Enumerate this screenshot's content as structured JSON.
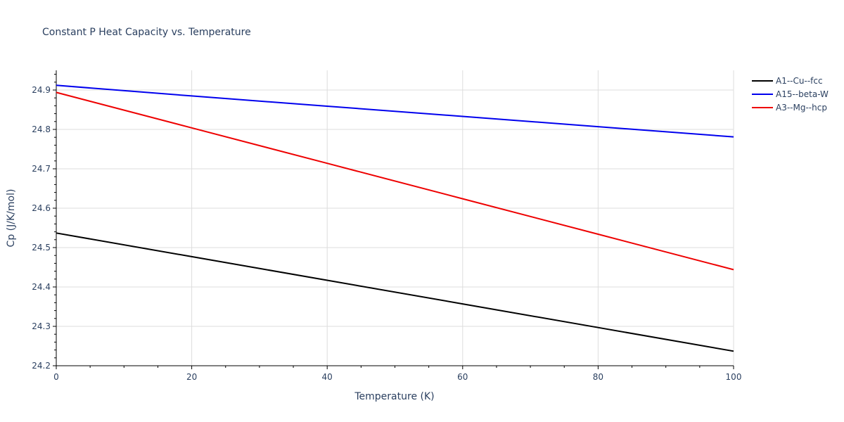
{
  "chart_data": {
    "type": "line",
    "title": "Constant P Heat Capacity vs. Temperature",
    "xlabel": "Temperature (K)",
    "ylabel": "Cp (J/K/mol)",
    "xlim": [
      0,
      100
    ],
    "ylim": [
      24.2,
      24.95
    ],
    "xticks": [
      0,
      20,
      40,
      60,
      80,
      100
    ],
    "xtick_labels": [
      "0",
      "20",
      "40",
      "60",
      "80",
      "100"
    ],
    "yticks": [
      24.2,
      24.3,
      24.4,
      24.5,
      24.6,
      24.7,
      24.8,
      24.9
    ],
    "ytick_labels": [
      "24.2",
      "24.3",
      "24.4",
      "24.5",
      "24.6",
      "24.7",
      "24.8",
      "24.9"
    ],
    "grid": true,
    "legend_position": "top-right",
    "series": [
      {
        "name": "A1--Cu--fcc",
        "color": "#000000",
        "x": [
          0,
          20,
          40,
          60,
          80,
          100
        ],
        "y": [
          24.537,
          24.477,
          24.417,
          24.357,
          24.297,
          24.237
        ]
      },
      {
        "name": "A15--beta-W",
        "color": "#0000ee",
        "x": [
          0,
          20,
          40,
          60,
          80,
          100
        ],
        "y": [
          24.912,
          24.885,
          24.859,
          24.833,
          24.807,
          24.781
        ]
      },
      {
        "name": "A3--Mg--hcp",
        "color": "#ee0000",
        "x": [
          0,
          20,
          40,
          60,
          80,
          100
        ],
        "y": [
          24.894,
          24.804,
          24.714,
          24.624,
          24.534,
          24.444
        ]
      }
    ]
  }
}
